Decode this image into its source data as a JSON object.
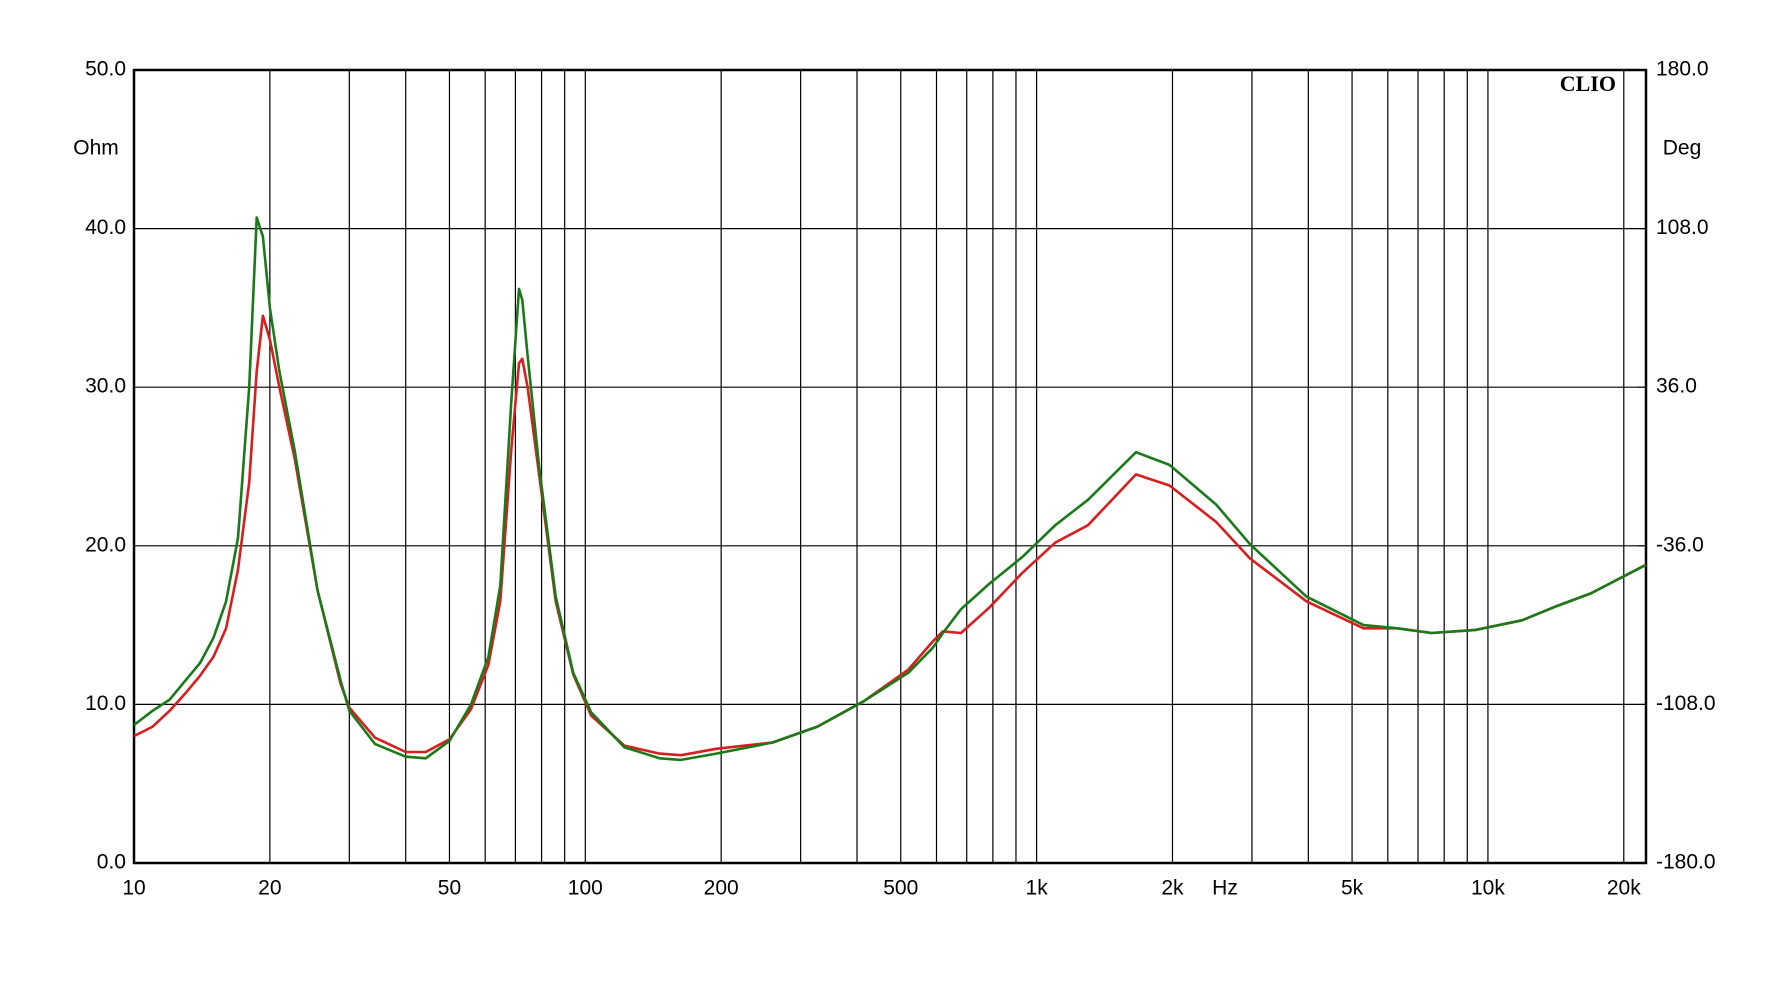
{
  "chart_data": {
    "type": "line",
    "brand": "CLIO",
    "x_label": "Hz",
    "y_label": "Ohm",
    "y2_label": "Deg",
    "x": [
      10,
      11,
      12,
      13,
      14,
      15,
      16,
      17,
      18,
      18.7,
      19.3,
      20,
      21,
      22.7,
      25.5,
      28.7,
      30,
      34.2,
      40,
      44.3,
      50,
      55.8,
      61,
      64.8,
      68.5,
      71.3,
      72.5,
      74.5,
      79,
      86,
      94,
      103,
      122,
      146,
      163,
      195,
      260,
      327,
      414,
      520,
      590,
      620,
      680,
      785,
      930,
      1100,
      1300,
      1660,
      1970,
      2500,
      2970,
      3960,
      5300,
      6300,
      7500,
      9400,
      11900,
      14200,
      16900,
      22400
    ],
    "series": [
      {
        "color": "#d81e1e",
        "values": [
          8.0,
          8.6,
          9.6,
          10.7,
          11.8,
          13.0,
          14.8,
          18.5,
          24,
          31,
          34.5,
          33,
          30,
          25.5,
          17.2,
          11.3,
          9.8,
          7.9,
          7,
          7,
          7.8,
          9.7,
          12.5,
          16.5,
          26,
          31.5,
          31.8,
          30,
          24.5,
          16.5,
          11.9,
          9.3,
          7.4,
          6.9,
          6.8,
          7.2,
          7.6,
          8.6,
          10.2,
          12.2,
          14.0,
          14.6,
          14.5,
          16.1,
          18.3,
          20.2,
          21.3,
          24.5,
          23.8,
          21.5,
          19.2,
          16.5,
          14.8,
          14.8,
          14.5,
          14.7,
          15.3,
          16.2,
          17.0,
          18.8
        ]
      },
      {
        "color": "#1a7a1a",
        "values": [
          8.7,
          9.6,
          10.3,
          11.5,
          12.6,
          14.2,
          16.5,
          20.5,
          30,
          40.7,
          39.5,
          35,
          31,
          26,
          17.2,
          11.5,
          9.6,
          7.5,
          6.7,
          6.6,
          7.7,
          10,
          13,
          17.5,
          29,
          36.2,
          35.5,
          32,
          25,
          16.8,
          12,
          9.5,
          7.3,
          6.6,
          6.5,
          6.9,
          7.6,
          8.6,
          10.2,
          12,
          13.6,
          14.5,
          16,
          17.6,
          19.3,
          21.3,
          22.9,
          25.9,
          25.1,
          22.6,
          20.1,
          16.8,
          15.0,
          14.8,
          14.5,
          14.7,
          15.3,
          16.2,
          17.0,
          18.8
        ]
      }
    ],
    "log_x": true,
    "xlim": [
      10,
      22400
    ],
    "xticks": [
      10,
      20,
      50,
      100,
      200,
      500,
      {
        "value": 1000,
        "label": "1k"
      },
      {
        "value": 2000,
        "label": "2k"
      },
      {
        "value": 5000,
        "label": "5k"
      },
      {
        "value": 10000,
        "label": "10k"
      },
      {
        "value": 20000,
        "label": "20k"
      }
    ],
    "x_minor_ticks": [
      30,
      40,
      60,
      70,
      80,
      90,
      300,
      400,
      600,
      700,
      800,
      900,
      3000,
      4000,
      6000,
      7000,
      8000,
      9000
    ],
    "ylim": [
      0,
      50
    ],
    "yticks": [
      {
        "value": 0,
        "label": "0.0"
      },
      {
        "value": 10,
        "label": "10.0"
      },
      {
        "value": 20,
        "label": "20.0"
      },
      {
        "value": 30,
        "label": "30.0"
      },
      {
        "value": 40,
        "label": "40.0"
      },
      {
        "value": 50,
        "label": "50.0"
      }
    ],
    "y2lim": [
      -180,
      180
    ],
    "y2ticks": [
      {
        "value": -180,
        "label": "-180.0"
      },
      {
        "value": -108,
        "label": "-108.0"
      },
      {
        "value": -36,
        "label": "-36.0"
      },
      {
        "value": 36,
        "label": "36.0"
      },
      {
        "value": 108,
        "label": "108.0"
      },
      {
        "value": 180,
        "label": "180.0"
      }
    ],
    "grid": true
  }
}
